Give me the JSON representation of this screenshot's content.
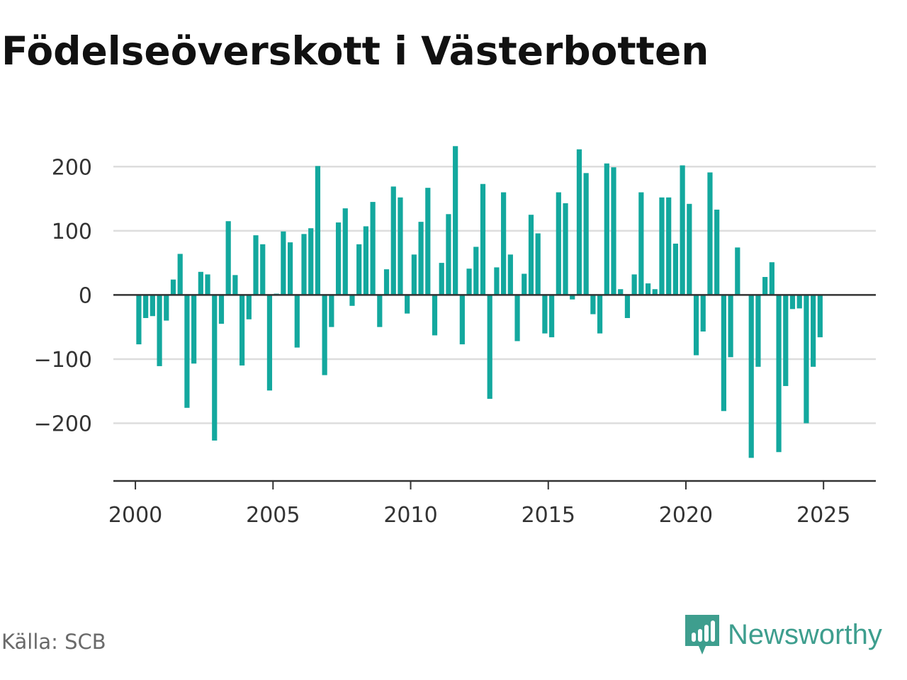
{
  "title": "Födelseöverskott i Västerbotten",
  "source": "Källa: SCB",
  "brand": {
    "name": "Newsworthy",
    "icon": "newsworthy-bar-chart-icon",
    "color": "#3e9e8e"
  },
  "colors": {
    "bar": "#13a89e",
    "grid": "#dddddd",
    "zero_line": "#333333",
    "axis": "#333333"
  },
  "chart_data": {
    "type": "bar",
    "title": "Födelseöverskott i Västerbotten",
    "xlabel": "",
    "ylabel": "",
    "ylim": [
      -290,
      250
    ],
    "xlim": [
      1999.2,
      2026.9
    ],
    "yticks": [
      200,
      100,
      0,
      -100,
      -200
    ],
    "ytick_labels": [
      "200",
      "100",
      "0",
      "−100",
      "−200"
    ],
    "xticks": [
      2000,
      2005,
      2010,
      2015,
      2020,
      2025
    ],
    "xtick_labels": [
      "2000",
      "2005",
      "2010",
      "2015",
      "2020",
      "2025"
    ],
    "grid": true,
    "x_start": 2000.125,
    "x_step": 0.25,
    "values": [
      -77,
      -36,
      -33,
      -111,
      -40,
      24,
      64,
      -176,
      -107,
      36,
      32,
      -227,
      -45,
      115,
      31,
      -110,
      -38,
      93,
      79,
      -149,
      2,
      99,
      82,
      -82,
      95,
      104,
      201,
      -125,
      -50,
      113,
      135,
      -17,
      79,
      107,
      145,
      -50,
      40,
      169,
      152,
      -29,
      63,
      114,
      167,
      -63,
      50,
      126,
      232,
      -77,
      41,
      75,
      173,
      -162,
      43,
      160,
      63,
      -72,
      33,
      125,
      96,
      -60,
      -66,
      160,
      143,
      -7,
      227,
      190,
      -30,
      -60,
      205,
      199,
      9,
      -36,
      32,
      160,
      18,
      9,
      152,
      152,
      80,
      202,
      142,
      -94,
      -57,
      191,
      133,
      -181,
      -97,
      74,
      -1,
      -254,
      -112,
      28,
      51,
      -245,
      -142,
      -22,
      -21,
      -200,
      -112,
      -66
    ]
  }
}
